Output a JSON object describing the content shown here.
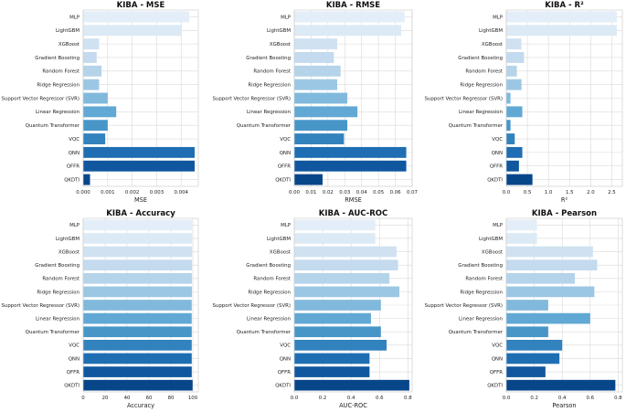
{
  "chart_data": [
    {
      "type": "bar",
      "orientation": "horizontal",
      "title": "KIBA - MSE",
      "xlabel": "MSE",
      "xlim": [
        0,
        0.0047
      ],
      "ticks": [
        0,
        0.001,
        0.002,
        0.003,
        0.004
      ],
      "tick_labels": [
        "0.000",
        "0.001",
        "0.002",
        "0.003",
        "0.004"
      ],
      "categories": [
        "MLP",
        "LightGBM",
        "XGBoost",
        "Gradient Boosting",
        "Random Forest",
        "Ridge Regression",
        "Support Vector Regressor (SVR)",
        "Linear Regression",
        "Quantum Transformer",
        "VQC",
        "QNN",
        "QFFR",
        "QKDTI"
      ],
      "values": [
        0.00433,
        0.00403,
        0.00065,
        0.00055,
        0.00075,
        0.00065,
        0.001,
        0.00135,
        0.001,
        0.0009,
        0.00455,
        0.00455,
        0.00028
      ]
    },
    {
      "type": "bar",
      "orientation": "horizontal",
      "title": "KIBA - RMSE",
      "xlabel": "RMSE",
      "xlim": [
        0,
        0.07
      ],
      "ticks": [
        0,
        0.01,
        0.02,
        0.03,
        0.04,
        0.05,
        0.06,
        0.07
      ],
      "tick_labels": [
        "0.00",
        "0.01",
        "0.02",
        "0.03",
        "0.04",
        "0.05",
        "0.06",
        "0.07"
      ],
      "categories": [
        "MLP",
        "LightGBM",
        "XGBoost",
        "Gradient Boosting",
        "Random Forest",
        "Ridge Regression",
        "Support Vector Regressor (SVR)",
        "Linear Regression",
        "Quantum Transformer",
        "VQC",
        "QNN",
        "QFFR",
        "QKDTI"
      ],
      "values": [
        0.0655,
        0.0635,
        0.0255,
        0.0235,
        0.0275,
        0.0255,
        0.0315,
        0.0375,
        0.0315,
        0.0295,
        0.0665,
        0.0665,
        0.0168
      ]
    },
    {
      "type": "bar",
      "orientation": "horizontal",
      "title": "KIBA - R²",
      "xlabel": "R²",
      "xlim": [
        0,
        2.75
      ],
      "ticks": [
        0,
        0.5,
        1,
        1.5,
        2,
        2.5
      ],
      "tick_labels": [
        "0.0",
        "0.5",
        "1.0",
        "1.5",
        "2.0",
        "2.5"
      ],
      "categories": [
        "MLP",
        "LightGBM",
        "XGBoost",
        "Gradient Boosting",
        "Random Forest",
        "Ridge Regression",
        "Support Vector Regressor (SVR)",
        "Linear Regression",
        "Quantum Transformer",
        "VQC",
        "QNN",
        "QFFR",
        "QKDTI"
      ],
      "values": [
        2.62,
        2.62,
        0.36,
        0.42,
        0.25,
        0.36,
        0.1,
        0.38,
        0.1,
        0.2,
        0.38,
        0.3,
        0.62
      ]
    },
    {
      "type": "bar",
      "orientation": "horizontal",
      "title": "KIBA - Accuracy",
      "xlabel": "Accuracy",
      "xlim": [
        0,
        105
      ],
      "ticks": [
        0,
        20,
        40,
        60,
        80,
        100
      ],
      "tick_labels": [
        "0",
        "20",
        "40",
        "60",
        "80",
        "100"
      ],
      "categories": [
        "MLP",
        "LightGBM",
        "XGBoost",
        "Gradient Boosting",
        "Random Forest",
        "Ridge Regression",
        "Support Vector Regressor (SVR)",
        "Linear Regression",
        "Quantum Transformer",
        "VQC",
        "QNN",
        "QFFR",
        "QKDTI"
      ],
      "values": [
        99.3,
        99.3,
        99.2,
        99.2,
        99.1,
        99.2,
        99.0,
        99.0,
        99.0,
        99.0,
        99.0,
        99.0,
        99.8
      ]
    },
    {
      "type": "bar",
      "orientation": "horizontal",
      "title": "KIBA - AUC-ROC",
      "xlabel": "AUC-ROC",
      "xlim": [
        0,
        0.83
      ],
      "ticks": [
        0,
        0.2,
        0.4,
        0.6,
        0.8
      ],
      "tick_labels": [
        "0.0",
        "0.2",
        "0.4",
        "0.6",
        "0.8"
      ],
      "categories": [
        "MLP",
        "LightGBM",
        "XGBoost",
        "Gradient Boosting",
        "Random Forest",
        "Ridge Regression",
        "Support Vector Regressor (SVR)",
        "Linear Regression",
        "Quantum Transformer",
        "VQC",
        "QNN",
        "QFFR",
        "QKDTI"
      ],
      "values": [
        0.57,
        0.57,
        0.72,
        0.73,
        0.67,
        0.74,
        0.61,
        0.54,
        0.61,
        0.65,
        0.53,
        0.53,
        0.81
      ]
    },
    {
      "type": "bar",
      "orientation": "horizontal",
      "title": "KIBA - Pearson",
      "xlabel": "Pearson",
      "xlim": [
        0,
        0.83
      ],
      "ticks": [
        0,
        0.2,
        0.4,
        0.6,
        0.8
      ],
      "tick_labels": [
        "0.0",
        "0.2",
        "0.4",
        "0.6",
        "0.8"
      ],
      "categories": [
        "MLP",
        "LightGBM",
        "XGBoost",
        "Gradient Boosting",
        "Random Forest",
        "Ridge Regression",
        "Support Vector Regressor (SVR)",
        "Linear Regression",
        "Quantum Transformer",
        "VQC",
        "QNN",
        "QFFR",
        "QKDTI"
      ],
      "values": [
        0.22,
        0.22,
        0.62,
        0.65,
        0.49,
        0.63,
        0.3,
        0.6,
        0.3,
        0.4,
        0.38,
        0.28,
        0.78
      ]
    }
  ],
  "palette": [
    "#e3eef9",
    "#dceaf6",
    "#d0e2f2",
    "#c4daee",
    "#b5d3e9",
    "#9cc7e4",
    "#80b9dc",
    "#62a8d4",
    "#4896c8",
    "#3282be",
    "#1f6eb3",
    "#10579f",
    "#08468a"
  ]
}
